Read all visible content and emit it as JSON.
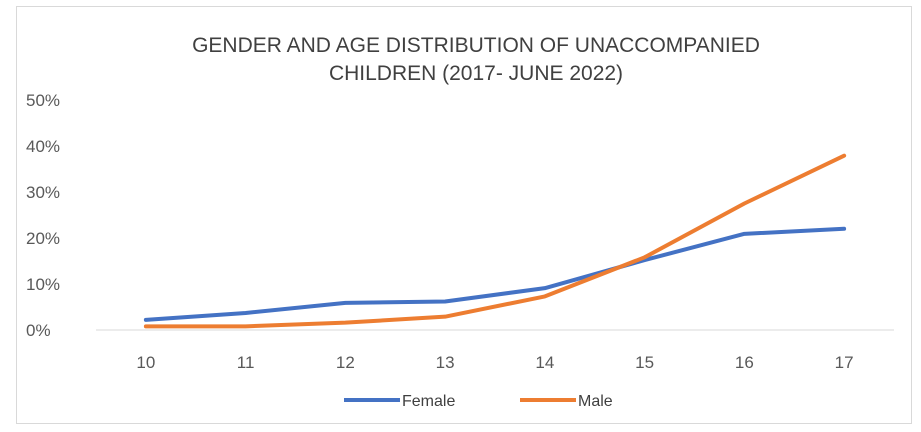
{
  "chart_data": {
    "type": "line",
    "title": "GENDER AND AGE DISTRIBUTION OF UNACCOMPANIED CHILDREN (2017- JUNE 2022)",
    "title_lines": [
      "GENDER AND AGE DISTRIBUTION OF UNACCOMPANIED",
      "CHILDREN (2017- JUNE 2022)"
    ],
    "categories": [
      "10",
      "11",
      "12",
      "13",
      "14",
      "15",
      "16",
      "17"
    ],
    "y_tick_labels": [
      "0%",
      "10%",
      "20%",
      "30%",
      "40%",
      "50%"
    ],
    "ylim": [
      0,
      50
    ],
    "grid": false,
    "legend_position": "bottom",
    "series": [
      {
        "name": "Female",
        "color": "#4472c4",
        "values": [
          2.2,
          3.7,
          5.9,
          6.2,
          9.1,
          15.2,
          20.9,
          22.0
        ]
      },
      {
        "name": "Male",
        "color": "#ed7d31",
        "values": [
          0.8,
          0.8,
          1.6,
          2.9,
          7.3,
          15.8,
          27.5,
          37.9
        ]
      }
    ]
  }
}
